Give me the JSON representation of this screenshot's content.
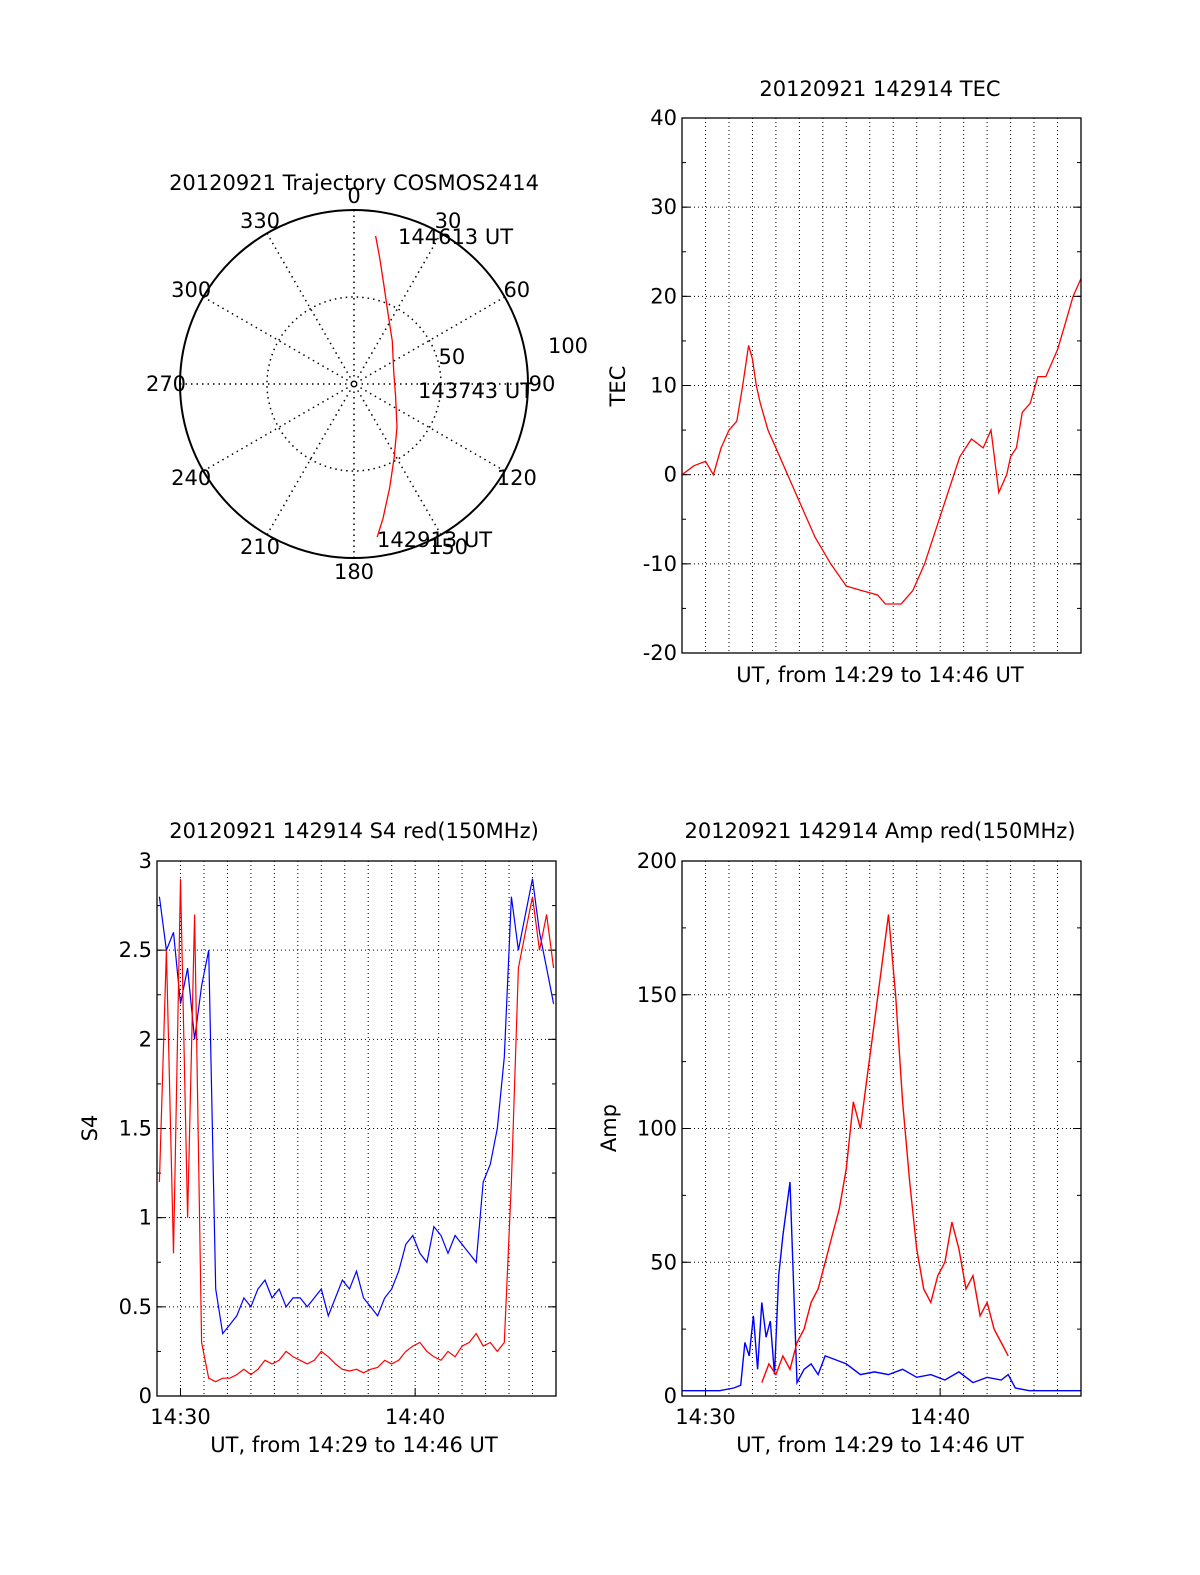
{
  "colors": {
    "red": "#ff0000",
    "blue": "#0000ff",
    "axis": "#000000",
    "grid": "#000000"
  },
  "chart_data": [
    {
      "type": "polar",
      "title": "20120921 Trajectory COSMOS2414",
      "azimuth_labels": [
        "0",
        "30",
        "60",
        "90",
        "120",
        "150",
        "180",
        "210",
        "240",
        "270",
        "300",
        "330"
      ],
      "radial_labels": [
        "50",
        "100"
      ],
      "rlim": [
        0,
        100
      ],
      "grid": true,
      "series": [
        {
          "color": "red",
          "points": [
            {
              "az": 8.3,
              "el_offset": 86
            },
            {
              "az": 11.5,
              "el_offset": 74
            },
            {
              "az": 16.5,
              "el_offset": 60
            },
            {
              "az": 24.9,
              "el_offset": 46
            },
            {
              "az": 41.8,
              "el_offset": 33
            },
            {
              "az": 72.1,
              "el_offset": 24
            },
            {
              "az": 106.9,
              "el_offset": 25
            },
            {
              "az": 135.1,
              "el_offset": 35
            },
            {
              "az": 151.2,
              "el_offset": 48
            },
            {
              "az": 161.0,
              "el_offset": 63
            },
            {
              "az": 167.8,
              "el_offset": 79
            },
            {
              "az": 171.4,
              "el_offset": 89
            }
          ]
        }
      ],
      "annotations": [
        "144613 UT",
        "143743 UT",
        "142913 UT"
      ]
    },
    {
      "type": "line",
      "title": "20120921 142914 TEC",
      "xlabel": "UT, from 14:29 to 14:46 UT",
      "ylabel": "TEC",
      "xlim": [
        14.4833,
        14.7667
      ],
      "ylim": [
        -20,
        40
      ],
      "yticks": [
        "-20",
        "-10",
        "0",
        "10",
        "20",
        "30",
        "40"
      ],
      "grid": true,
      "series": [
        {
          "color": "red",
          "x": [
            14.4833,
            14.4917,
            14.5,
            14.5056,
            14.5111,
            14.5167,
            14.5222,
            14.5264,
            14.5306,
            14.5333,
            14.5361,
            14.5389,
            14.5444,
            14.5528,
            14.5611,
            14.5694,
            14.5778,
            14.5889,
            14.6,
            14.6111,
            14.6222,
            14.6278,
            14.6389,
            14.6472,
            14.6556,
            14.6639,
            14.6722,
            14.6806,
            14.6889,
            14.6972,
            14.7028,
            14.7083,
            14.7139,
            14.7167,
            14.7208,
            14.725,
            14.7306,
            14.7361,
            14.7417,
            14.75,
            14.7556,
            14.7611,
            14.7667
          ],
          "y": [
            0,
            1,
            1.5,
            0,
            3,
            5,
            6,
            10,
            14.5,
            13,
            10,
            8,
            5,
            2,
            -1,
            -4,
            -7,
            -10,
            -12.5,
            -13,
            -13.5,
            -14.5,
            -14.5,
            -13,
            -10,
            -6,
            -2,
            2,
            4,
            3,
            5,
            -2,
            0,
            2,
            3,
            7,
            8,
            11,
            11,
            14,
            17,
            20,
            22
          ]
        }
      ]
    },
    {
      "type": "line",
      "title": "20120921 142914 S4 red(150MHz)",
      "xlabel": "UT, from 14:29 to 14:46 UT",
      "ylabel": "S4",
      "xlim": [
        14.4833,
        14.7667
      ],
      "ylim": [
        0,
        3
      ],
      "yticks": [
        "0",
        "0.5",
        "1",
        "1.5",
        "2",
        "2.5",
        "3"
      ],
      "xticks": [
        "14:30",
        "14:40"
      ],
      "grid": true,
      "series": [
        {
          "color": "blue",
          "x": [
            14.485,
            14.49,
            14.495,
            14.5,
            14.505,
            14.51,
            14.515,
            14.52,
            14.525,
            14.53,
            14.535,
            14.54,
            14.545,
            14.55,
            14.555,
            14.56,
            14.565,
            14.57,
            14.575,
            14.58,
            14.585,
            14.59,
            14.595,
            14.6,
            14.605,
            14.61,
            14.615,
            14.62,
            14.625,
            14.63,
            14.635,
            14.64,
            14.645,
            14.65,
            14.655,
            14.66,
            14.665,
            14.67,
            14.675,
            14.68,
            14.685,
            14.69,
            14.695,
            14.7,
            14.705,
            14.71,
            14.715,
            14.72,
            14.725,
            14.73,
            14.735,
            14.74,
            14.745,
            14.75,
            14.755,
            14.76,
            14.765
          ],
          "y": [
            2.8,
            2.5,
            2.6,
            2.2,
            2.4,
            2.0,
            2.3,
            2.5,
            0.6,
            0.35,
            0.4,
            0.45,
            0.55,
            0.5,
            0.6,
            0.65,
            0.55,
            0.6,
            0.5,
            0.55,
            0.55,
            0.5,
            0.55,
            0.6,
            0.45,
            0.55,
            0.65,
            0.6,
            0.7,
            0.55,
            0.5,
            0.45,
            0.55,
            0.6,
            0.7,
            0.85,
            0.9,
            0.8,
            0.75,
            0.95,
            0.9,
            0.8,
            0.9,
            0.85,
            0.8,
            0.75,
            1.2,
            1.3,
            1.5,
            1.9,
            2.8,
            2.5,
            2.7,
            2.9,
            2.6,
            2.4,
            2.2
          ]
        },
        {
          "color": "red",
          "x": [
            14.485,
            14.49,
            14.495,
            14.5,
            14.505,
            14.51,
            14.515,
            14.52,
            14.525,
            14.53,
            14.535,
            14.54,
            14.545,
            14.55,
            14.555,
            14.56,
            14.565,
            14.57,
            14.575,
            14.58,
            14.585,
            14.59,
            14.595,
            14.6,
            14.605,
            14.61,
            14.615,
            14.62,
            14.625,
            14.63,
            14.635,
            14.64,
            14.645,
            14.65,
            14.655,
            14.66,
            14.665,
            14.67,
            14.675,
            14.68,
            14.685,
            14.69,
            14.695,
            14.7,
            14.705,
            14.71,
            14.715,
            14.72,
            14.725,
            14.73,
            14.735,
            14.74,
            14.745,
            14.75,
            14.755,
            14.76,
            14.765
          ],
          "y": [
            1.2,
            2.5,
            0.8,
            2.9,
            1.0,
            2.7,
            0.3,
            0.1,
            0.08,
            0.1,
            0.1,
            0.12,
            0.15,
            0.12,
            0.15,
            0.2,
            0.18,
            0.2,
            0.25,
            0.22,
            0.2,
            0.18,
            0.2,
            0.25,
            0.22,
            0.18,
            0.15,
            0.14,
            0.15,
            0.13,
            0.15,
            0.16,
            0.2,
            0.18,
            0.2,
            0.25,
            0.28,
            0.3,
            0.25,
            0.22,
            0.2,
            0.25,
            0.22,
            0.28,
            0.3,
            0.35,
            0.28,
            0.3,
            0.25,
            0.3,
            1.2,
            2.4,
            2.6,
            2.8,
            2.5,
            2.7,
            2.4
          ]
        }
      ]
    },
    {
      "type": "line",
      "title": "20120921 142914 Amp red(150MHz)",
      "xlabel": "UT, from 14:29 to 14:46 UT",
      "ylabel": "Amp",
      "xlim": [
        14.4833,
        14.7667
      ],
      "ylim": [
        0,
        200
      ],
      "yticks": [
        "0",
        "50",
        "100",
        "150",
        "200"
      ],
      "xticks": [
        "14:30",
        "14:40"
      ],
      "grid": true,
      "series": [
        {
          "color": "blue",
          "x": [
            14.4833,
            14.49,
            14.5,
            14.51,
            14.52,
            14.525,
            14.528,
            14.531,
            14.534,
            14.537,
            14.54,
            14.543,
            14.546,
            14.549,
            14.552,
            14.555,
            14.56,
            14.565,
            14.57,
            14.575,
            14.58,
            14.585,
            14.59,
            14.6,
            14.61,
            14.62,
            14.63,
            14.64,
            14.65,
            14.66,
            14.67,
            14.68,
            14.69,
            14.7,
            14.71,
            14.715,
            14.72,
            14.73,
            14.74,
            14.75,
            14.7667
          ],
          "y": [
            2,
            2,
            2,
            2,
            3,
            4,
            20,
            15,
            30,
            10,
            35,
            22,
            28,
            8,
            45,
            60,
            80,
            5,
            10,
            12,
            8,
            15,
            14,
            12,
            8,
            9,
            8,
            10,
            7,
            8,
            6,
            9,
            5,
            7,
            6,
            8,
            3,
            2,
            2,
            2,
            2
          ]
        },
        {
          "color": "red",
          "x": [
            14.54,
            14.545,
            14.55,
            14.555,
            14.56,
            14.565,
            14.57,
            14.575,
            14.58,
            14.585,
            14.59,
            14.595,
            14.6,
            14.605,
            14.61,
            14.615,
            14.62,
            14.625,
            14.63,
            14.635,
            14.64,
            14.645,
            14.65,
            14.655,
            14.66,
            14.665,
            14.67,
            14.675,
            14.68,
            14.685,
            14.69,
            14.695,
            14.7,
            14.705,
            14.71,
            14.715
          ],
          "y": [
            5,
            12,
            8,
            15,
            10,
            20,
            25,
            35,
            40,
            50,
            60,
            70,
            85,
            110,
            100,
            120,
            140,
            160,
            180,
            150,
            110,
            80,
            55,
            40,
            35,
            45,
            50,
            65,
            55,
            40,
            45,
            30,
            35,
            25,
            20,
            15
          ]
        }
      ]
    }
  ]
}
